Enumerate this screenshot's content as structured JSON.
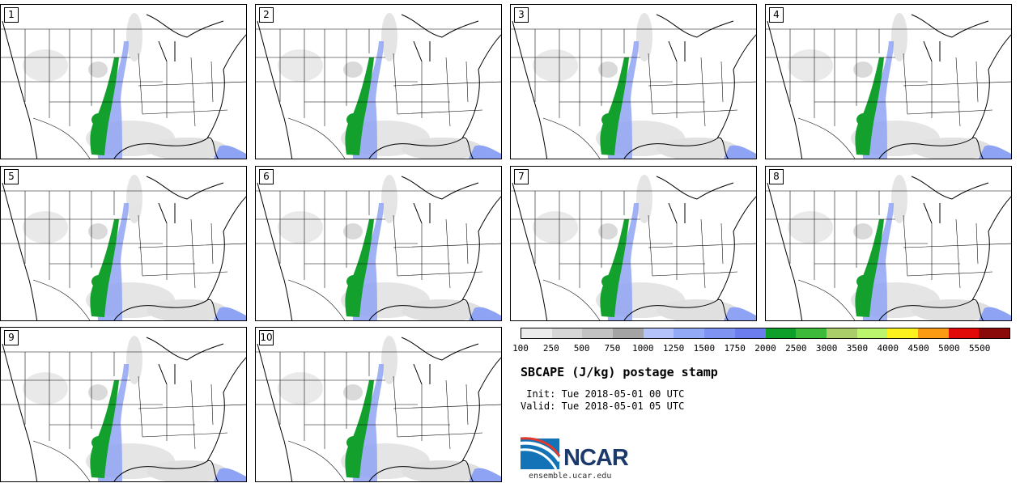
{
  "panels": [
    "1",
    "2",
    "3",
    "4",
    "5",
    "6",
    "7",
    "8",
    "9",
    "10"
  ],
  "colorbar": {
    "colors": [
      "#ececec",
      "#d6d6d6",
      "#c2c2c2",
      "#a4a4a4",
      "#b4c4fa",
      "#93aaf7",
      "#7e93f2",
      "#6c7eef",
      "#0e9e2a",
      "#3dba3a",
      "#aacd6a",
      "#bbf56e",
      "#fcf21e",
      "#fb9b14",
      "#e20a08",
      "#8a0a0a"
    ],
    "labels": [
      "100",
      "250",
      "500",
      "750",
      "1000",
      "1250",
      "1500",
      "1750",
      "2000",
      "2500",
      "3000",
      "3500",
      "4000",
      "4500",
      "5000",
      "5500"
    ]
  },
  "title": "SBCAPE (J/kg) postage stamp",
  "init": " Init: Tue 2018-05-01 00 UTC",
  "valid": "Valid: Tue 2018-05-01 05 UTC",
  "logo": {
    "text": "NCAR",
    "url": "ensemble.ucar.edu"
  }
}
